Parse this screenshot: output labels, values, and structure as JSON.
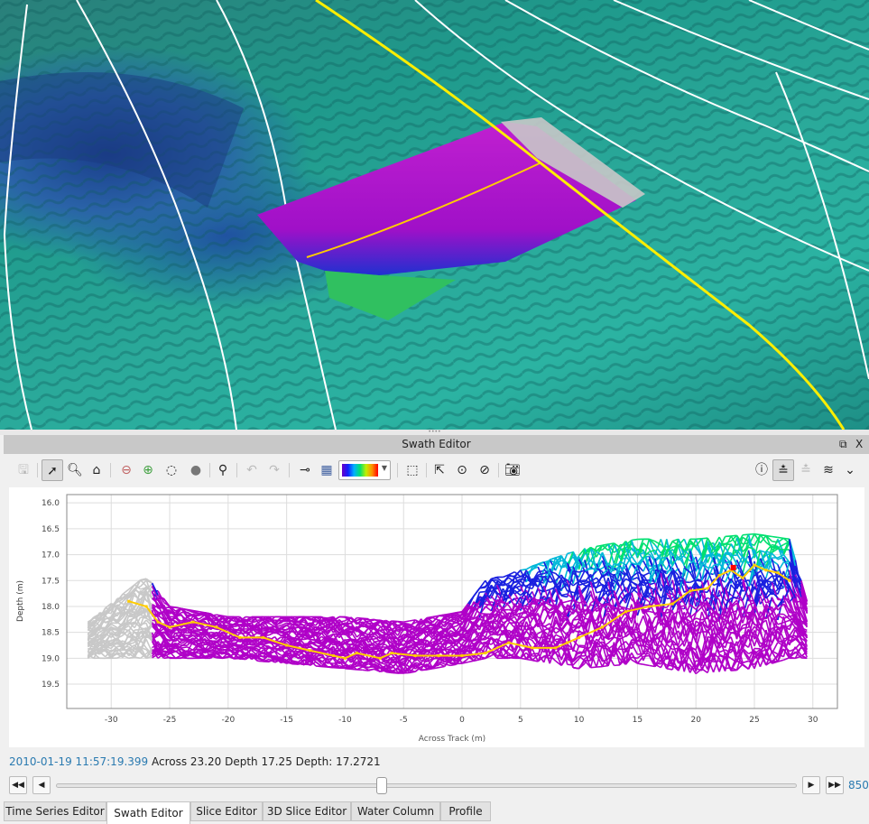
{
  "panel": {
    "title": "Swath Editor",
    "float_icon": "float-window-icon",
    "close_label": "X"
  },
  "toolbar": {
    "left_tools": [
      "save-icon",
      "pointer-icon",
      "zoom-icon",
      "home-icon",
      "lasso-reject-icon",
      "lasso-accept-icon",
      "lasso-select-icon",
      "point-select-icon",
      "filter-icon",
      "undo-icon",
      "redo-icon",
      "point-style-icon",
      "color-by-icon"
    ],
    "colormap": "rainbow",
    "right_tools": [
      "selection-rect-icon",
      "pick-info-icon",
      "pick-point-icon",
      "pick-measure-icon",
      "screenshot-icon",
      "info-icon",
      "single-ping-icon",
      "multi-ping-icon",
      "swath-stack-icon",
      "expand-icon"
    ]
  },
  "chart_data": {
    "type": "line",
    "xlabel": "Across Track (m)",
    "ylabel": "Depth (m)",
    "xlim": [
      -33.8,
      32.1
    ],
    "ylim": [
      15.84,
      19.97
    ],
    "y_inverted": true,
    "grid": true,
    "xticks": [
      "-30",
      "-25",
      "-20",
      "-15",
      "-10",
      "-5",
      "0",
      "5",
      "10",
      "15",
      "20",
      "25",
      "30"
    ],
    "yticks": [
      "16.0",
      "16.5",
      "17.0",
      "17.5",
      "18.0",
      "18.5",
      "19.0",
      "19.5"
    ],
    "swath_envelope": {
      "x": [
        -32,
        -27,
        -25,
        -20,
        -15,
        -10,
        -5,
        0,
        2,
        5,
        10,
        15,
        20,
        25,
        28,
        30
      ],
      "shallow": [
        18.3,
        17.4,
        18.0,
        18.2,
        18.2,
        18.2,
        18.3,
        18.1,
        17.5,
        17.3,
        16.9,
        16.7,
        16.7,
        16.6,
        16.7,
        18.3
      ],
      "deep": [
        19.0,
        19.0,
        19.0,
        19.0,
        19.1,
        19.2,
        19.3,
        19.1,
        19.0,
        19.0,
        19.2,
        19.1,
        19.3,
        19.2,
        19.0,
        19.0
      ]
    },
    "rejected_range_x": [
      -33,
      -26
    ],
    "depth_colors": {
      "shallow": "#00e070",
      "mid_shallow": "#00b8d8",
      "mid": "#1a20e0",
      "deep": "#b000c8",
      "rejected": "#c8c8c8"
    },
    "selected_ping": {
      "color": "#ffcc00",
      "x": [
        -28.5,
        -27,
        -26,
        -25,
        -23,
        -21,
        -19,
        -17,
        -15,
        -13,
        -11,
        -10,
        -9,
        -7,
        -6,
        -4,
        -2,
        0,
        2,
        4,
        6,
        8,
        9,
        10,
        12,
        14,
        16,
        18,
        19.5,
        21,
        22,
        23,
        24,
        25,
        26,
        27,
        28
      ],
      "y": [
        17.9,
        18.0,
        18.3,
        18.4,
        18.3,
        18.4,
        18.6,
        18.6,
        18.75,
        18.85,
        18.95,
        19.0,
        18.9,
        19.0,
        18.9,
        18.95,
        18.95,
        18.95,
        18.9,
        18.7,
        18.8,
        18.8,
        18.7,
        18.6,
        18.4,
        18.1,
        18.0,
        17.95,
        17.7,
        17.65,
        17.4,
        17.3,
        17.45,
        17.2,
        17.3,
        17.35,
        17.5
      ]
    },
    "selected_point": {
      "x": 23.2,
      "y": 17.25,
      "color": "#ff0000"
    }
  },
  "status": {
    "timestamp": "2010-01-19 11:57:19.399",
    "across": "Across 23.20",
    "depth": "Depth 17.25",
    "depth2": "Depth: 17.2721"
  },
  "player": {
    "position": 0.44,
    "frame": "850"
  },
  "tabs": [
    {
      "label": "Time Series Editor",
      "selected": false
    },
    {
      "label": "Swath Editor",
      "selected": true
    },
    {
      "label": "Slice Editor",
      "selected": false
    },
    {
      "label": "3D Slice Editor",
      "selected": false
    },
    {
      "label": "Water Column",
      "selected": false
    },
    {
      "label": "Profile",
      "selected": false
    }
  ]
}
